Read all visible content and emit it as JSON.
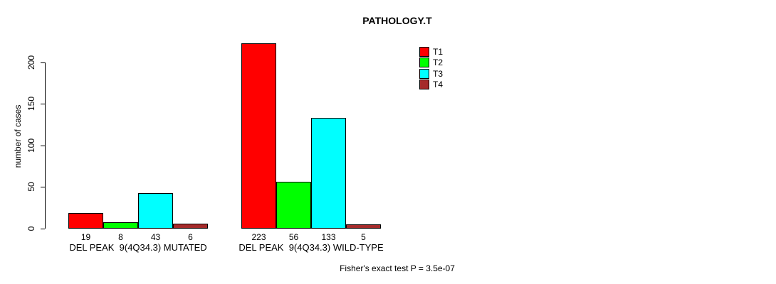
{
  "chart_data": {
    "type": "bar",
    "title": "PATHOLOGY.T",
    "ylabel": "number of cases",
    "xlabel": "",
    "yticks": [
      0,
      50,
      100,
      150,
      200
    ],
    "ylim": [
      0,
      223
    ],
    "grid": false,
    "legend_position": "top-right",
    "categories": [
      "DEL PEAK  9(4Q34.3) MUTATED",
      "DEL PEAK  9(4Q34.3) WILD-TYPE"
    ],
    "series": [
      {
        "name": "T1",
        "color": "#FF0000",
        "values": [
          19,
          223
        ]
      },
      {
        "name": "T2",
        "color": "#00FF00",
        "values": [
          8,
          56
        ]
      },
      {
        "name": "T3",
        "color": "#00FFFF",
        "values": [
          43,
          133
        ]
      },
      {
        "name": "T4",
        "color": "#A52A2A",
        "values": [
          6,
          5
        ]
      }
    ],
    "value_labels_shown": true,
    "annotation": "Fisher's exact test P = 3.5e-07"
  }
}
